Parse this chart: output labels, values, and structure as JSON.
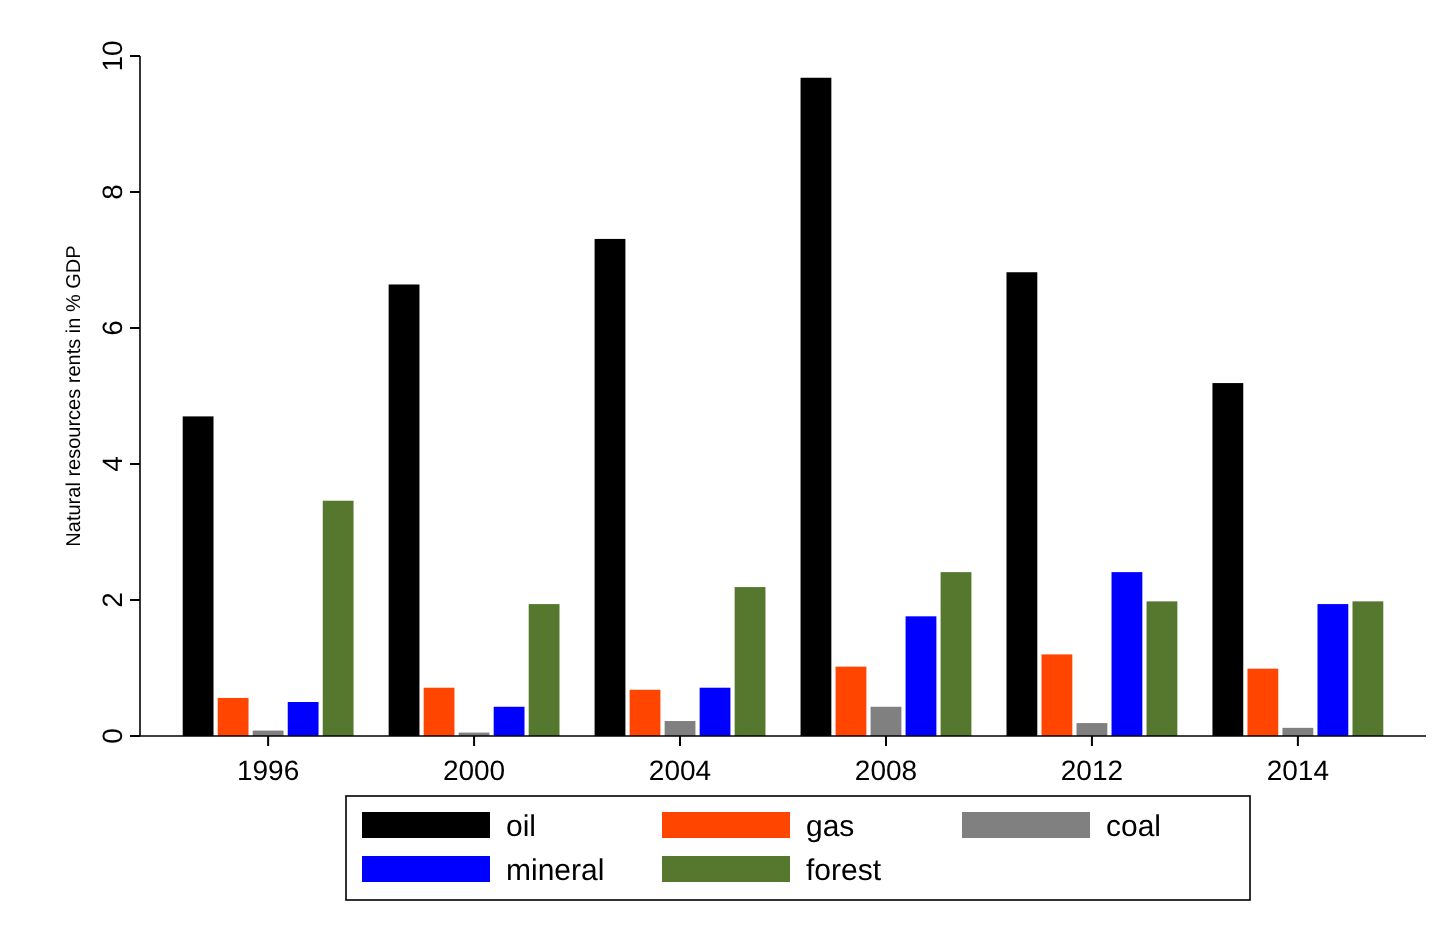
{
  "chart_data": {
    "type": "bar",
    "ylabel": "Natural resources rents in % GDP",
    "categories": [
      "1996",
      "2000",
      "2004",
      "2008",
      "2012",
      "2014"
    ],
    "series": [
      {
        "name": "oil",
        "color": "#000000",
        "values": [
          4.7,
          6.64,
          7.31,
          9.68,
          6.82,
          5.19
        ]
      },
      {
        "name": "gas",
        "color": "#ff4500",
        "values": [
          0.56,
          0.71,
          0.68,
          1.02,
          1.2,
          0.99
        ]
      },
      {
        "name": "coal",
        "color": "#808080",
        "values": [
          0.08,
          0.05,
          0.22,
          0.43,
          0.19,
          0.12
        ]
      },
      {
        "name": "mineral",
        "color": "#0000ff",
        "values": [
          0.5,
          0.43,
          0.71,
          1.76,
          2.41,
          1.94
        ]
      },
      {
        "name": "forest",
        "color": "#55782e",
        "values": [
          3.46,
          1.94,
          2.19,
          2.41,
          1.98,
          1.98
        ]
      }
    ],
    "ylim": [
      0,
      10
    ],
    "yticks": [
      0,
      2,
      4,
      6,
      8,
      10
    ],
    "grid": false,
    "legend": "bottom"
  }
}
